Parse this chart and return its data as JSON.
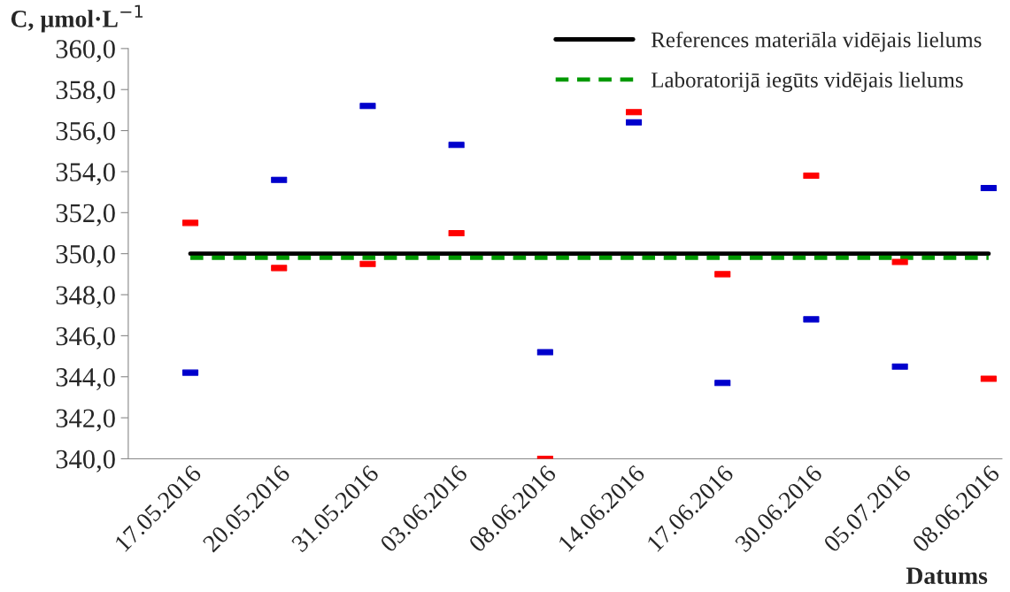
{
  "chart_data": {
    "type": "scatter",
    "ylabel": "C, µmol·L$^{−1}$",
    "xlabel": "Datums",
    "categories": [
      "17.05.2016",
      "20.05.2016",
      "31.05.2016",
      "03.06.2016",
      "08.06.2016",
      "14.06.2016",
      "17.06.2016",
      "30.06.2016",
      "05.07.2016",
      "08.06.2016"
    ],
    "series": [
      {
        "color": "#ff0000",
        "values": [
          351.5,
          349.3,
          349.5,
          351.0,
          340.0,
          356.9,
          349.0,
          353.8,
          349.6,
          343.9
        ]
      },
      {
        "color": "#0000cc",
        "values": [
          344.2,
          353.6,
          357.2,
          355.3,
          345.2,
          356.4,
          343.7,
          346.8,
          344.5,
          353.2
        ]
      }
    ],
    "ref_lines": [
      {
        "axis": "y",
        "value": 350.0,
        "label": "References materiāla vidējais lielums",
        "color": "#000000",
        "line_style": "solid"
      },
      {
        "axis": "y",
        "value": 349.8,
        "label": "Laboratorijā iegūts vidējais lielums",
        "color": "#009900",
        "line_style": "dashed"
      }
    ],
    "ylim": [
      340,
      360
    ],
    "yticks": [
      {
        "value": 340,
        "label": "340,0"
      },
      {
        "value": 342,
        "label": "342,0"
      },
      {
        "value": 344,
        "label": "344,0"
      },
      {
        "value": 346,
        "label": "346,0"
      },
      {
        "value": 348,
        "label": "348,0"
      },
      {
        "value": 350,
        "label": "350,0"
      },
      {
        "value": 352,
        "label": "352,0"
      },
      {
        "value": 354,
        "label": "354,0"
      },
      {
        "value": 356,
        "label": "356,0"
      },
      {
        "value": 358,
        "label": "358,0"
      },
      {
        "value": 360,
        "label": "360,0"
      }
    ],
    "legend": "top right",
    "grid": false
  }
}
